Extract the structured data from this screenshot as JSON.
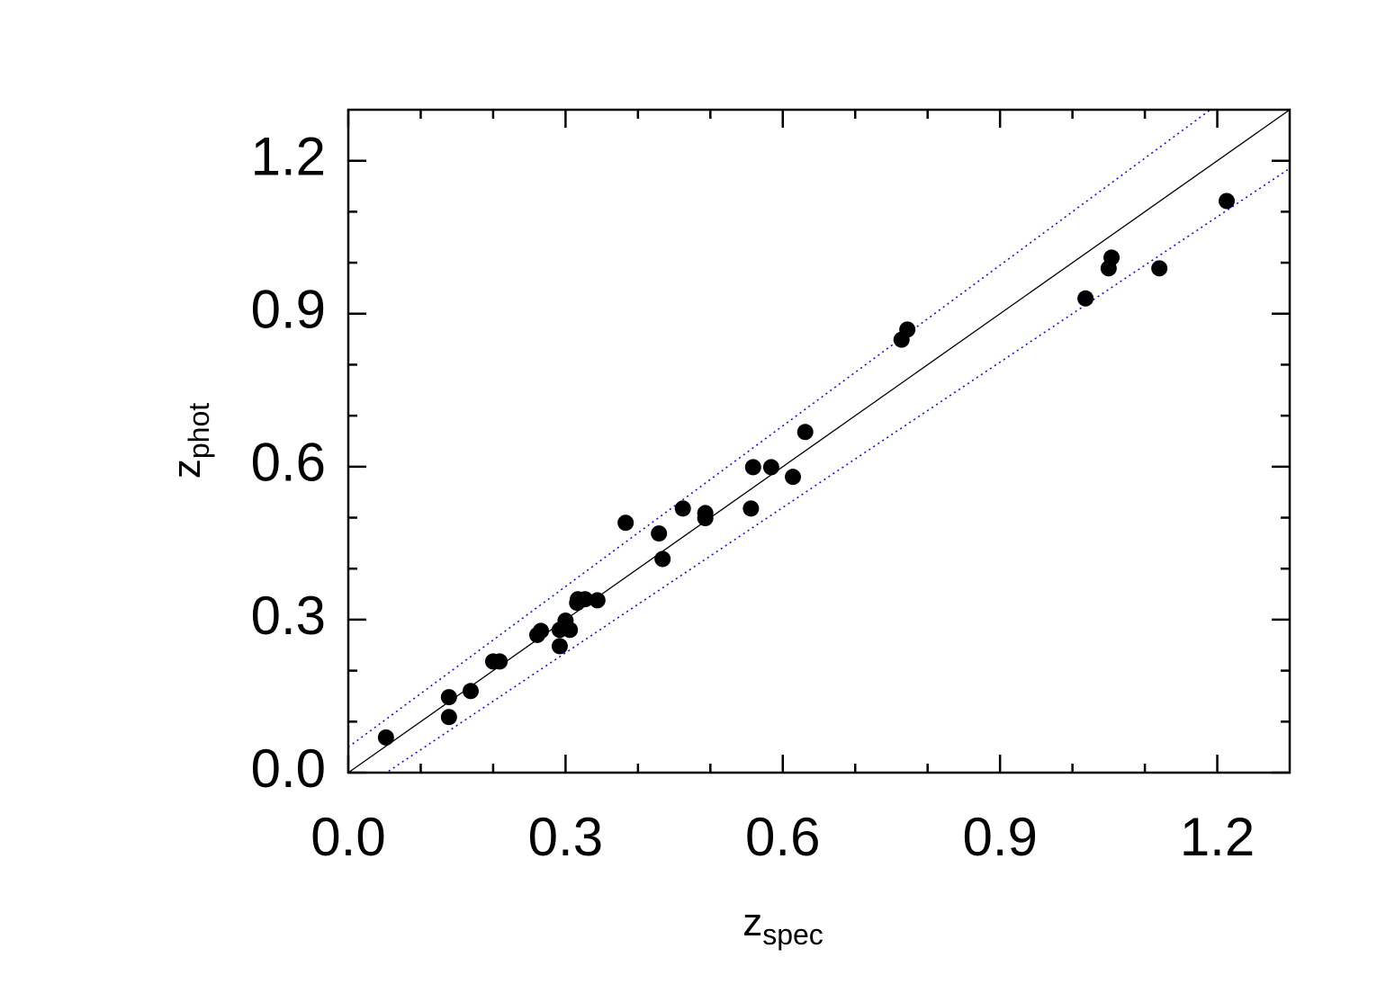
{
  "chart_data": {
    "type": "scatter",
    "xlabel": "z",
    "xlabel_sub": "spec",
    "ylabel": "z",
    "ylabel_sub": "phot",
    "xlim": [
      0,
      1.3
    ],
    "ylim": [
      0,
      1.3
    ],
    "xticks": [
      {
        "value": 0,
        "label": "0.0"
      },
      0.3,
      0.6,
      0.9,
      1.2
    ],
    "yticks": [
      {
        "value": 0,
        "label": "0.0"
      },
      0.3,
      0.6,
      0.9,
      1.2
    ],
    "xticks_minor": [
      0.1,
      0.2,
      0.4,
      0.5,
      0.7,
      0.8,
      1.0,
      1.1
    ],
    "yticks_minor": [
      0.1,
      0.2,
      0.4,
      0.5,
      0.7,
      0.8,
      1.0,
      1.1
    ],
    "color": "#000000",
    "lines": [
      {
        "slope": 1,
        "intercept": 0,
        "color": "#000000",
        "style": "solid"
      },
      {
        "slope": 1.05,
        "intercept": 0.05,
        "color": "#0000ff",
        "style": "dotted"
      },
      {
        "slope": 0.95,
        "intercept": -0.05,
        "color": "#0000ff",
        "style": "dotted"
      }
    ],
    "x": [
      0.052,
      0.139,
      0.139,
      0.169,
      0.2,
      0.209,
      0.261,
      0.266,
      0.292,
      0.292,
      0.3,
      0.306,
      0.316,
      0.317,
      0.327,
      0.344,
      0.383,
      0.429,
      0.434,
      0.462,
      0.493,
      0.493,
      0.556,
      0.559,
      0.584,
      0.614,
      0.631,
      0.764,
      0.772,
      1.018,
      1.05,
      1.054,
      1.12,
      1.213
    ],
    "y": [
      0.069,
      0.148,
      0.109,
      0.16,
      0.218,
      0.218,
      0.27,
      0.278,
      0.248,
      0.28,
      0.298,
      0.28,
      0.333,
      0.34,
      0.34,
      0.338,
      0.49,
      0.469,
      0.419,
      0.518,
      0.509,
      0.499,
      0.518,
      0.599,
      0.599,
      0.58,
      0.668,
      0.849,
      0.869,
      0.93,
      0.989,
      1.01,
      0.989,
      1.121
    ]
  }
}
